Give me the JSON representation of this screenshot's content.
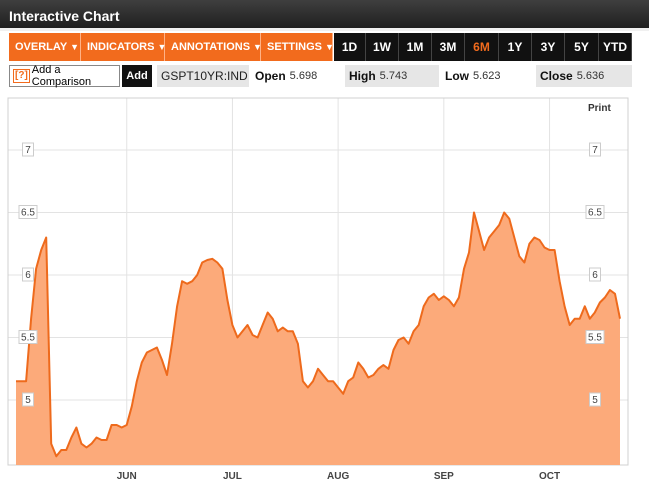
{
  "header": {
    "title": "Interactive Chart"
  },
  "toolbar": {
    "menus": [
      {
        "label": "OVERLAY",
        "caret": "▼"
      },
      {
        "label": "INDICATORS",
        "caret": "▼"
      },
      {
        "label": "ANNOTATIONS",
        "caret": "▼"
      },
      {
        "label": "SETTINGS",
        "caret": "▼"
      }
    ],
    "ranges": [
      "1D",
      "1W",
      "1M",
      "3M",
      "6M",
      "1Y",
      "3Y",
      "5Y",
      "YTD"
    ],
    "active_range": "6M"
  },
  "quote": {
    "help": "?",
    "compare_label": "Add a Comparison",
    "add_label": "Add",
    "ticker": "GSPT10YR:IND",
    "open_label": "Open",
    "open_value": "5.698",
    "high_label": "High",
    "high_value": "5.743",
    "low_label": "Low",
    "low_value": "5.623",
    "close_label": "Close",
    "close_value": "5.636"
  },
  "print_label": "Print",
  "colors": {
    "accent": "#f26b1d",
    "fill": "#fcaa7a",
    "line": "#ee6a1c"
  },
  "chart_data": {
    "type": "area",
    "title": "",
    "xlabel": "",
    "ylabel": "",
    "ylim": [
      4.5,
      7.5
    ],
    "yticks": [
      "7",
      "6.5",
      "6",
      "5.5",
      "5"
    ],
    "ytick_values": [
      7,
      6.5,
      6,
      5.5,
      5
    ],
    "months": [
      "JUN",
      "JUL",
      "AUG",
      "SEP",
      "OCT"
    ],
    "month_positions": [
      22,
      43,
      64,
      85,
      106
    ],
    "x": [
      0,
      2,
      3,
      4,
      5,
      6,
      7,
      8,
      9,
      10,
      11,
      12,
      13,
      14,
      15,
      16,
      17,
      18,
      19,
      20,
      21,
      22,
      23,
      24,
      25,
      26,
      27,
      28,
      29,
      30,
      31,
      32,
      33,
      34,
      35,
      36,
      37,
      38,
      39,
      40,
      41,
      42,
      43,
      44,
      45,
      46,
      47,
      48,
      49,
      50,
      51,
      52,
      53,
      54,
      55,
      56,
      57,
      58,
      59,
      60,
      61,
      62,
      63,
      64,
      65,
      66,
      67,
      68,
      69,
      70,
      71,
      72,
      73,
      74,
      75,
      76,
      77,
      78,
      79,
      80,
      81,
      82,
      83,
      84,
      85,
      86,
      87,
      88,
      89,
      90,
      91,
      92,
      93,
      94,
      95,
      96,
      97,
      98,
      99,
      100,
      101,
      102,
      103,
      104,
      105,
      106,
      107,
      108,
      109,
      110,
      111,
      112,
      113,
      114,
      115,
      116,
      117,
      118,
      119,
      120
    ],
    "values": [
      5.15,
      5.15,
      5.65,
      6.05,
      6.2,
      6.3,
      4.65,
      4.55,
      4.6,
      4.6,
      4.7,
      4.78,
      4.65,
      4.62,
      4.65,
      4.7,
      4.68,
      4.68,
      4.8,
      4.8,
      4.78,
      4.8,
      4.95,
      5.15,
      5.3,
      5.38,
      5.4,
      5.42,
      5.32,
      5.2,
      5.45,
      5.75,
      5.95,
      5.93,
      5.95,
      6.0,
      6.1,
      6.12,
      6.13,
      6.1,
      6.05,
      5.8,
      5.6,
      5.5,
      5.55,
      5.6,
      5.52,
      5.5,
      5.6,
      5.7,
      5.65,
      5.55,
      5.58,
      5.55,
      5.55,
      5.45,
      5.15,
      5.1,
      5.15,
      5.25,
      5.2,
      5.15,
      5.15,
      5.1,
      5.05,
      5.15,
      5.18,
      5.3,
      5.25,
      5.18,
      5.2,
      5.25,
      5.28,
      5.25,
      5.4,
      5.48,
      5.5,
      5.45,
      5.55,
      5.6,
      5.75,
      5.82,
      5.85,
      5.8,
      5.83,
      5.8,
      5.75,
      5.82,
      6.05,
      6.18,
      6.5,
      6.35,
      6.2,
      6.3,
      6.35,
      6.4,
      6.5,
      6.45,
      6.3,
      6.15,
      6.1,
      6.25,
      6.3,
      6.28,
      6.22,
      6.2,
      6.2,
      5.95,
      5.75,
      5.6,
      5.65,
      5.65,
      5.75,
      5.65,
      5.7,
      5.78,
      5.82,
      5.88,
      5.85,
      5.65
    ]
  }
}
